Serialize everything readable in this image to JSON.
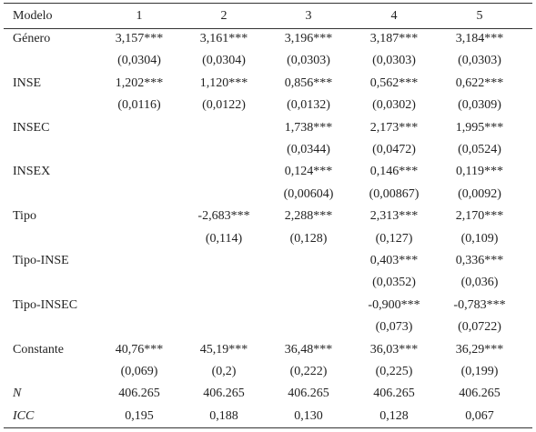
{
  "table": {
    "header": [
      "Modelo",
      "1",
      "2",
      "3",
      "4",
      "5"
    ],
    "rows": [
      [
        "Género",
        "3,157***",
        "3,161***",
        "3,196***",
        "3,187***",
        "3,184***"
      ],
      [
        null,
        "(0,0304)",
        "(0,0304)",
        "(0,0303)",
        "(0,0303)",
        "(0,0303)"
      ],
      [
        "INSE",
        "1,202***",
        "1,120***",
        "0,856***",
        "0,562***",
        "0,622***"
      ],
      [
        null,
        "(0,0116)",
        "(0,0122)",
        "(0,0132)",
        "(0,0302)",
        "(0,0309)"
      ],
      [
        "INSEC",
        null,
        null,
        "1,738***",
        "2,173***",
        "1,995***"
      ],
      [
        null,
        null,
        null,
        "(0,0344)",
        "(0,0472)",
        "(0,0524)"
      ],
      [
        "INSEX",
        null,
        null,
        "0,124***",
        "0,146***",
        "0,119***"
      ],
      [
        null,
        null,
        null,
        "(0,00604)",
        "(0,00867)",
        "(0,0092)"
      ],
      [
        "Tipo",
        null,
        "-2,683***",
        "2,288***",
        "2,313***",
        "2,170***"
      ],
      [
        null,
        null,
        "(0,114)",
        "(0,128)",
        "(0,127)",
        "(0,109)"
      ],
      [
        "Tipo-INSE",
        null,
        null,
        null,
        "0,403***",
        "0,336***"
      ],
      [
        null,
        null,
        null,
        null,
        "(0,0352)",
        "(0,036)"
      ],
      [
        "Tipo-INSEC",
        null,
        null,
        null,
        "-0,900***",
        "-0,783***"
      ],
      [
        null,
        null,
        null,
        null,
        "(0,073)",
        "(0,0722)"
      ],
      [
        "Constante",
        "40,76***",
        "45,19***",
        "36,48***",
        "36,03***",
        "36,29***"
      ],
      [
        null,
        "(0,069)",
        "(0,2)",
        "(0,222)",
        "(0,225)",
        "(0,199)"
      ],
      [
        "N",
        "406.265",
        "406.265",
        "406.265",
        "406.265",
        "406.265"
      ],
      [
        "ICC",
        "0,195",
        "0,188",
        "0,130",
        "0,128",
        "0,067"
      ]
    ]
  }
}
